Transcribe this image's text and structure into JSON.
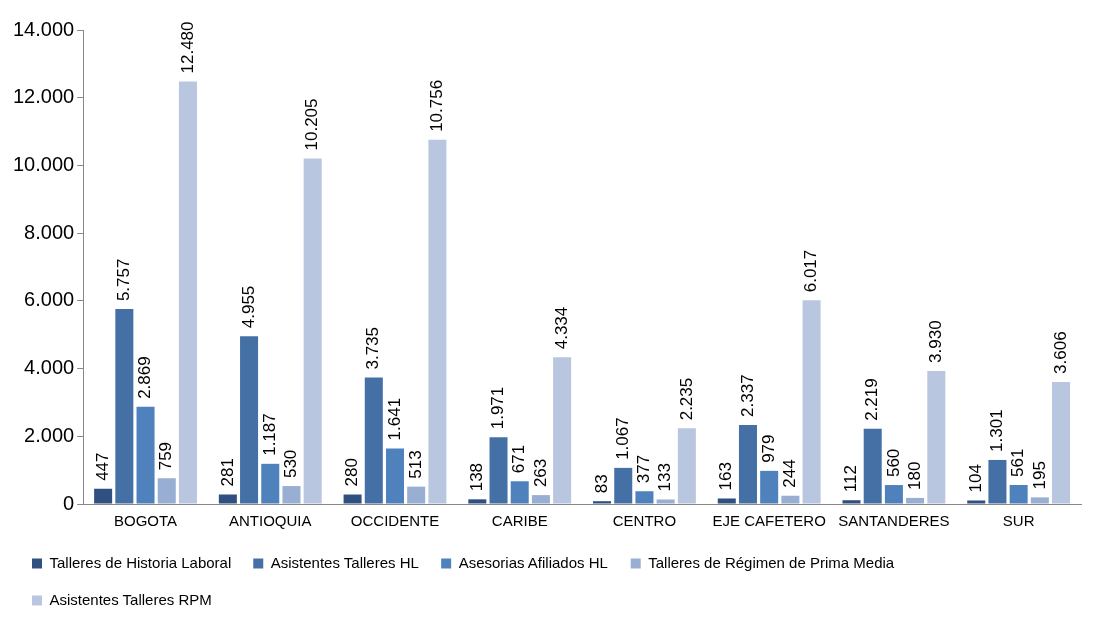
{
  "chart_data": {
    "type": "bar",
    "categories": [
      "BOGOTA",
      "ANTIOQUIA",
      "OCCIDENTE",
      "CARIBE",
      "CENTRO",
      "EJE CAFETERO",
      "SANTANDERES",
      "SUR"
    ],
    "series": [
      {
        "name": "Talleres de Historia Laboral",
        "color": "#2f5080",
        "values": [
          447,
          281,
          280,
          138,
          83,
          163,
          112,
          104
        ],
        "value_labels": [
          "447",
          "281",
          "280",
          "138",
          "83",
          "163",
          "112",
          "104"
        ]
      },
      {
        "name": "Asistentes Talleres HL",
        "color": "#4470a6",
        "values": [
          5757,
          4955,
          3735,
          1971,
          1067,
          2337,
          2219,
          1301
        ],
        "value_labels": [
          "5.757",
          "4.955",
          "3.735",
          "1.971",
          "1.067",
          "2.337",
          "2.219",
          "1.301"
        ]
      },
      {
        "name": "Asesorias Afiliados HL",
        "color": "#4f81bd",
        "values": [
          2869,
          1187,
          1641,
          671,
          377,
          979,
          560,
          561
        ],
        "value_labels": [
          "2.869",
          "1.187",
          "1.641",
          "671",
          "377",
          "979",
          "560",
          "561"
        ]
      },
      {
        "name": "Talleres de Régimen de Prima Media",
        "color": "#98aed2",
        "values": [
          759,
          530,
          513,
          263,
          133,
          244,
          180,
          195
        ],
        "value_labels": [
          "759",
          "530",
          "513",
          "263",
          "133",
          "244",
          "180",
          "195"
        ]
      },
      {
        "name": "Asistentes Talleres RPM",
        "color": "#b9c6df",
        "values": [
          12480,
          10205,
          10756,
          4334,
          2235,
          6017,
          3930,
          3606
        ],
        "value_labels": [
          "12.480",
          "10.205",
          "10.756",
          "4.334",
          "2.235",
          "6.017",
          "3.930",
          "3.606"
        ]
      }
    ],
    "ylim": [
      0,
      14000
    ],
    "yticks": [
      0,
      {
        "value": 2000,
        "label": "2.000"
      },
      {
        "value": 4000,
        "label": "4.000"
      },
      {
        "value": 6000,
        "label": "6.000"
      },
      {
        "value": 8000,
        "label": "8.000"
      },
      {
        "value": 10000,
        "label": "10.000"
      },
      {
        "value": 12000,
        "label": "12.000"
      },
      {
        "value": 14000,
        "label": "14.000"
      }
    ],
    "grid": false,
    "legend": "bottom"
  }
}
